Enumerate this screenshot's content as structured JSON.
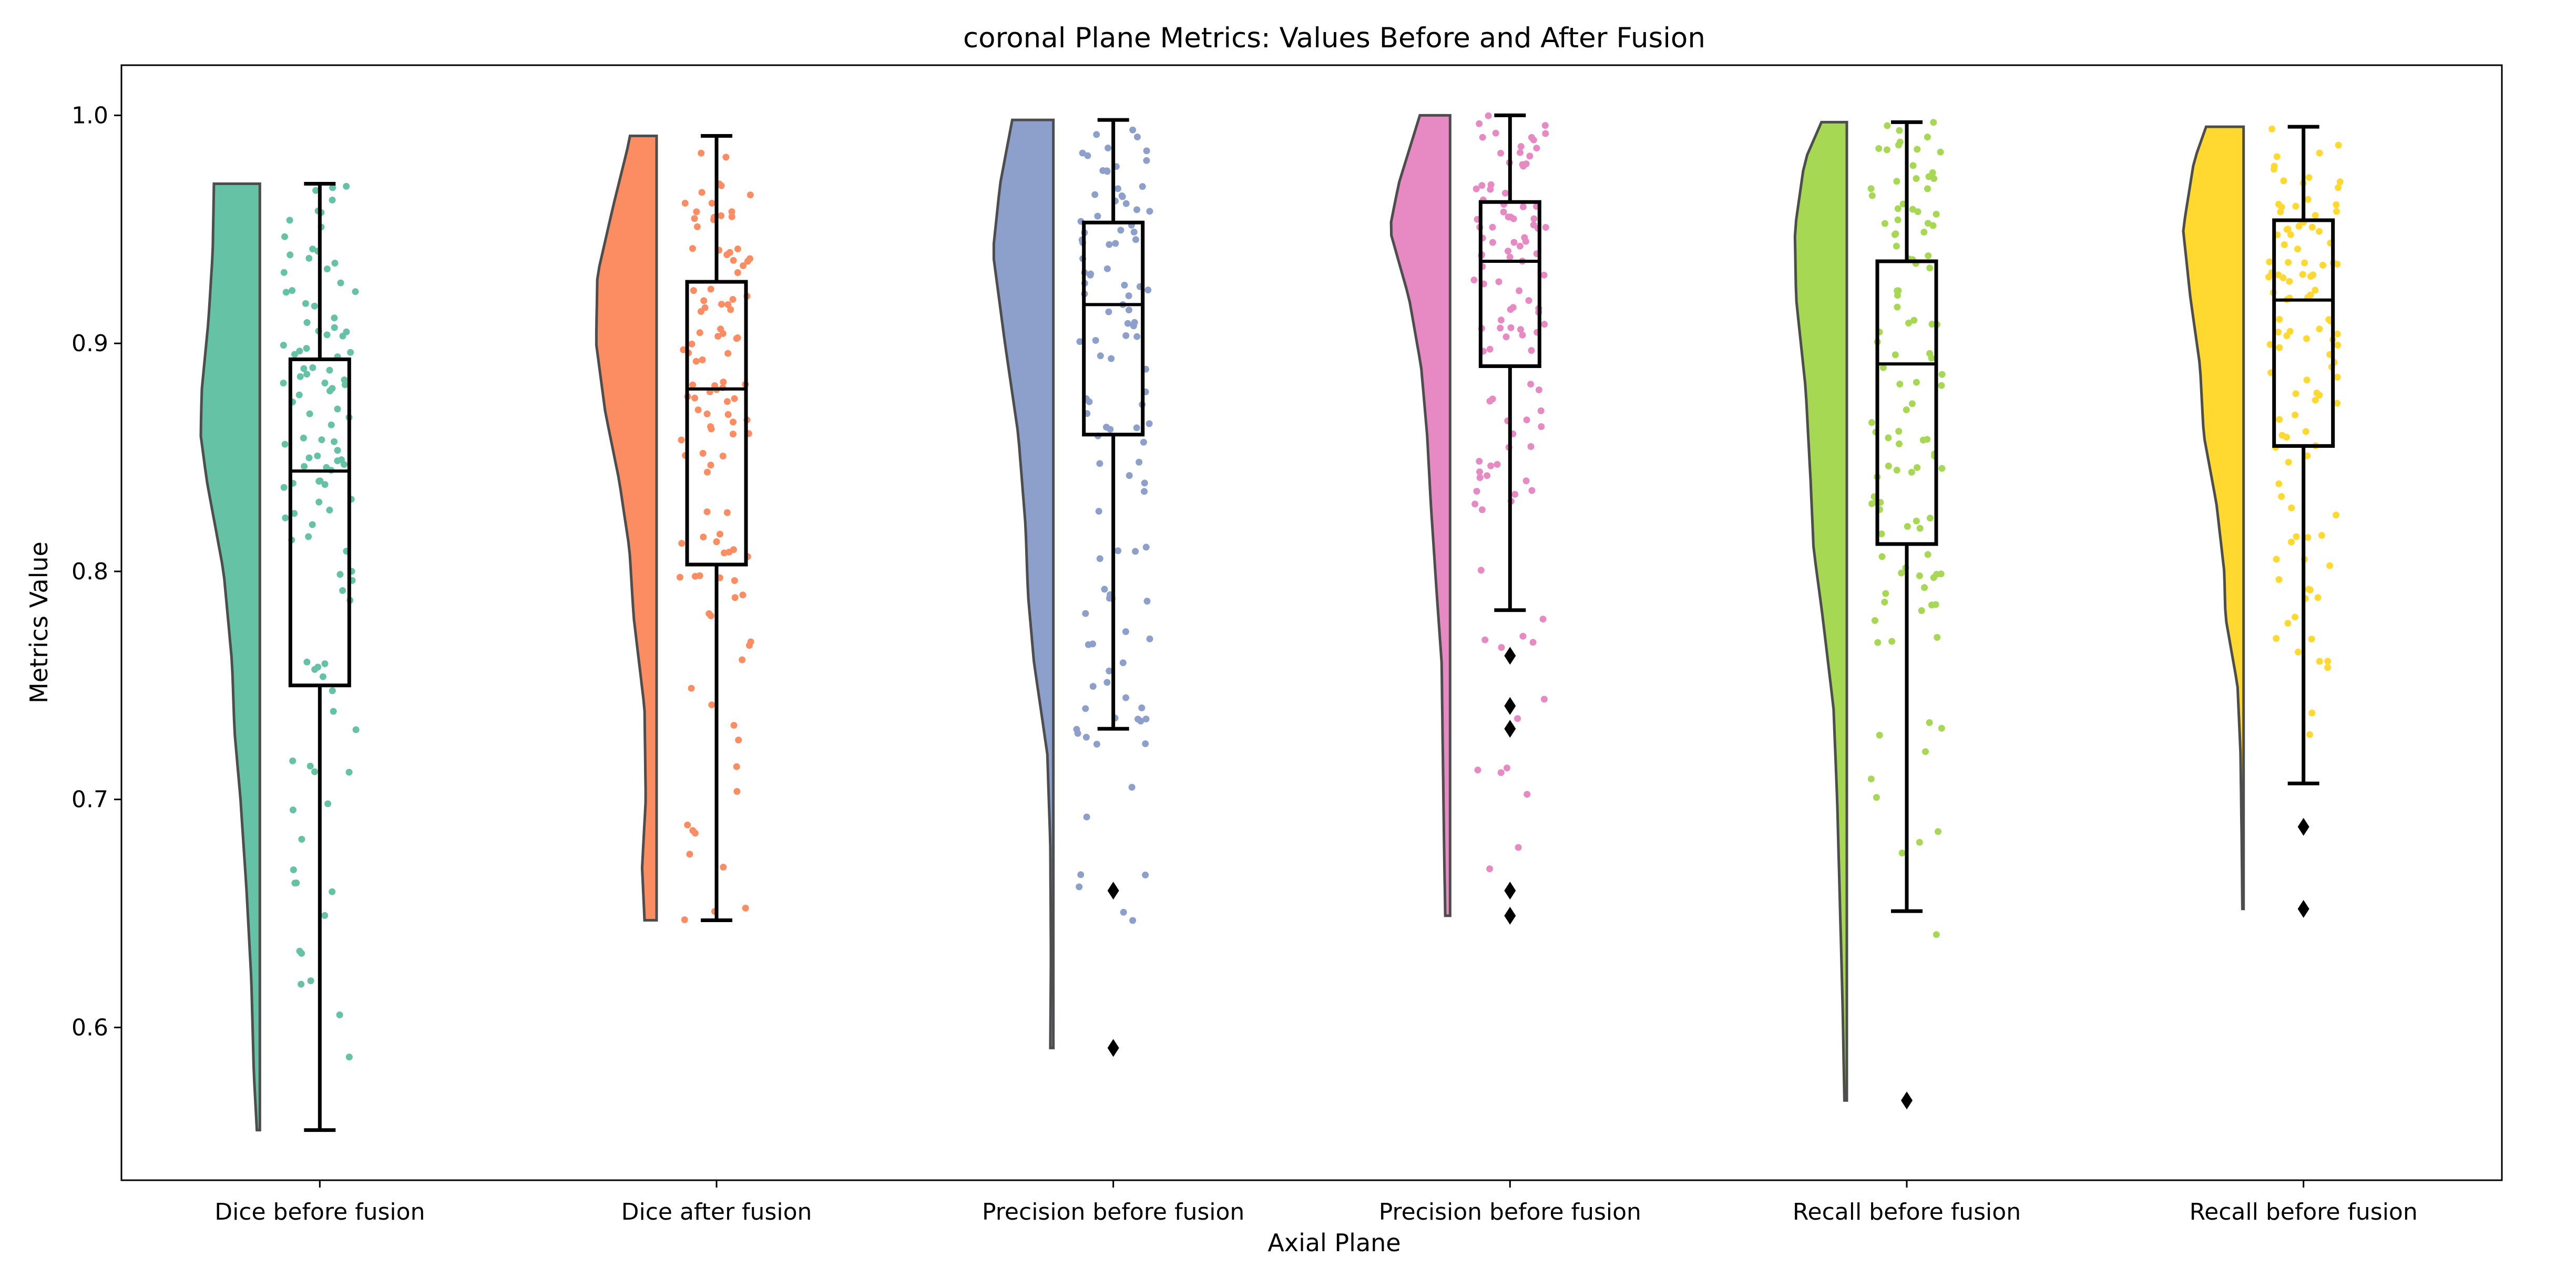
{
  "chart_data": {
    "type": "raincloud",
    "title": "coronal Plane Metrics: Values Before and After Fusion",
    "xlabel": "Axial Plane",
    "ylabel": "Metrics Value",
    "ylim": [
      0.533,
      1.022
    ],
    "yticks": [
      0.6,
      0.7,
      0.8,
      0.9,
      1.0
    ],
    "ytick_labels": [
      "0.6",
      "0.7",
      "0.8",
      "0.9",
      "1.0"
    ],
    "grid": false,
    "categories": [
      "Dice before fusion",
      "Dice after fusion",
      "Precision before fusion",
      "Precision before fusion",
      "Recall before fusion",
      "Recall before fusion"
    ],
    "colors": [
      "#66c2a5",
      "#fc8d62",
      "#8da0cb",
      "#e78ac3",
      "#a6d854",
      "#ffd92f"
    ],
    "box": [
      {
        "whislo": 0.555,
        "q1": 0.75,
        "med": 0.844,
        "q3": 0.893,
        "whishi": 0.97,
        "fliers": []
      },
      {
        "whislo": 0.647,
        "q1": 0.803,
        "med": 0.88,
        "q3": 0.927,
        "whishi": 0.991,
        "fliers": []
      },
      {
        "whislo": 0.731,
        "q1": 0.86,
        "med": 0.917,
        "q3": 0.953,
        "whishi": 0.998,
        "fliers": [
          0.66,
          0.591
        ]
      },
      {
        "whislo": 0.783,
        "q1": 0.89,
        "med": 0.936,
        "q3": 0.962,
        "whishi": 1.0,
        "fliers": [
          0.763,
          0.741,
          0.731,
          0.66,
          0.649
        ]
      },
      {
        "whislo": 0.651,
        "q1": 0.812,
        "med": 0.891,
        "q3": 0.936,
        "whishi": 0.997,
        "fliers": [
          0.568
        ]
      },
      {
        "whislo": 0.707,
        "q1": 0.855,
        "med": 0.919,
        "q3": 0.954,
        "whishi": 0.995,
        "fliers": [
          0.688,
          0.652
        ]
      }
    ],
    "violins": [
      {
        "min": 0.555,
        "max": 0.97,
        "density": [
          [
            0.555,
            0.05
          ],
          [
            0.58,
            0.1
          ],
          [
            0.62,
            0.14
          ],
          [
            0.66,
            0.22
          ],
          [
            0.7,
            0.32
          ],
          [
            0.73,
            0.42
          ],
          [
            0.76,
            0.46
          ],
          [
            0.8,
            0.6
          ],
          [
            0.84,
            0.88
          ],
          [
            0.86,
            0.98
          ],
          [
            0.88,
            0.96
          ],
          [
            0.91,
            0.85
          ],
          [
            0.94,
            0.78
          ],
          [
            0.97,
            0.76
          ]
        ]
      },
      {
        "min": 0.647,
        "max": 0.991,
        "density": [
          [
            0.647,
            0.2
          ],
          [
            0.67,
            0.24
          ],
          [
            0.7,
            0.18
          ],
          [
            0.74,
            0.2
          ],
          [
            0.78,
            0.38
          ],
          [
            0.81,
            0.45
          ],
          [
            0.84,
            0.62
          ],
          [
            0.87,
            0.85
          ],
          [
            0.9,
            1.0
          ],
          [
            0.93,
            0.98
          ],
          [
            0.96,
            0.72
          ],
          [
            0.99,
            0.44
          ]
        ]
      },
      {
        "min": 0.591,
        "max": 0.998,
        "density": [
          [
            0.591,
            0.05
          ],
          [
            0.63,
            0.04
          ],
          [
            0.68,
            0.05
          ],
          [
            0.72,
            0.1
          ],
          [
            0.76,
            0.32
          ],
          [
            0.79,
            0.42
          ],
          [
            0.82,
            0.46
          ],
          [
            0.86,
            0.58
          ],
          [
            0.9,
            0.8
          ],
          [
            0.94,
            1.0
          ],
          [
            0.97,
            0.88
          ],
          [
            0.998,
            0.68
          ]
        ]
      },
      {
        "min": 0.649,
        "max": 1.0,
        "density": [
          [
            0.649,
            0.08
          ],
          [
            0.68,
            0.1
          ],
          [
            0.72,
            0.12
          ],
          [
            0.76,
            0.14
          ],
          [
            0.79,
            0.22
          ],
          [
            0.83,
            0.32
          ],
          [
            0.86,
            0.38
          ],
          [
            0.89,
            0.48
          ],
          [
            0.92,
            0.68
          ],
          [
            0.95,
            1.0
          ],
          [
            0.97,
            0.85
          ],
          [
            1.0,
            0.5
          ]
        ]
      },
      {
        "min": 0.568,
        "max": 0.997,
        "density": [
          [
            0.568,
            0.04
          ],
          [
            0.61,
            0.07
          ],
          [
            0.66,
            0.12
          ],
          [
            0.7,
            0.16
          ],
          [
            0.74,
            0.22
          ],
          [
            0.78,
            0.4
          ],
          [
            0.81,
            0.55
          ],
          [
            0.84,
            0.6
          ],
          [
            0.88,
            0.68
          ],
          [
            0.92,
            0.84
          ],
          [
            0.95,
            0.86
          ],
          [
            0.98,
            0.7
          ],
          [
            0.997,
            0.42
          ]
        ]
      },
      {
        "min": 0.652,
        "max": 0.995,
        "density": [
          [
            0.652,
            0.02
          ],
          [
            0.68,
            0.03
          ],
          [
            0.72,
            0.05
          ],
          [
            0.75,
            0.1
          ],
          [
            0.78,
            0.3
          ],
          [
            0.8,
            0.32
          ],
          [
            0.83,
            0.45
          ],
          [
            0.86,
            0.66
          ],
          [
            0.89,
            0.72
          ],
          [
            0.92,
            0.88
          ],
          [
            0.95,
            1.0
          ],
          [
            0.98,
            0.82
          ],
          [
            0.995,
            0.62
          ]
        ]
      }
    ]
  }
}
